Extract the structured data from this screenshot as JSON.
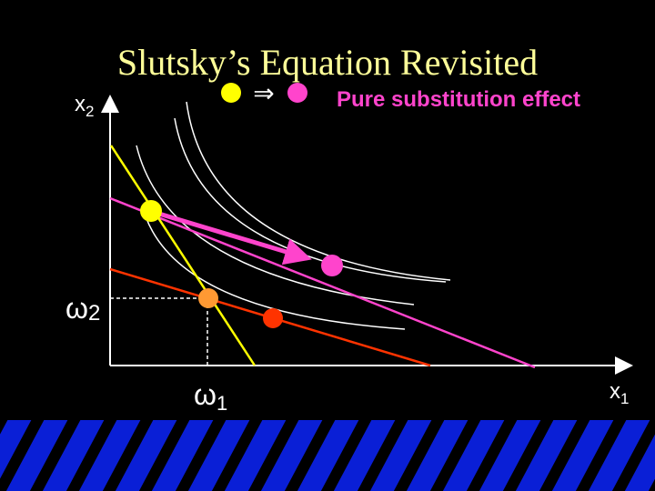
{
  "title": "Slutsky’s Equation Revisited",
  "legend": {
    "arrow": "⇒",
    "label": "Pure substitution effect"
  },
  "axes": {
    "y_label": {
      "base": "x",
      "sub": "2"
    },
    "x_label": {
      "base": "x",
      "sub": "1"
    }
  },
  "endowment": {
    "y_label": {
      "base": "ω",
      "sub": "2"
    },
    "x_label": {
      "base": "ω",
      "sub": "1"
    }
  }
}
